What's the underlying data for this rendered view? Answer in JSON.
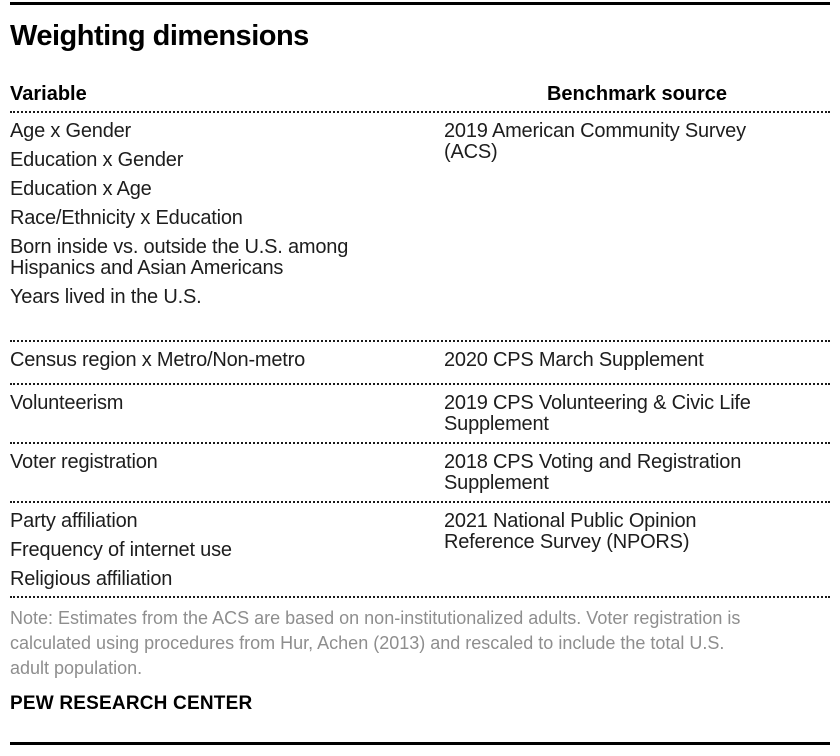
{
  "colors": {
    "rule": "#000000",
    "body_text": "#1d1d1d",
    "note_gray": "#8e8e8e"
  },
  "chart_data": {
    "type": "table",
    "title": "Weighting dimensions",
    "columns": [
      "Variable",
      "Benchmark source"
    ],
    "rows": [
      {
        "variables": [
          "Age x Gender",
          "Education x Gender",
          "Education x Age",
          "Race/Ethnicity x Education",
          "Born inside vs. outside the U.S. among Hispanics and Asian Americans",
          "Years lived in the U.S."
        ],
        "benchmark": "2019 American Community Survey (ACS)",
        "benchmark_lines": [
          "2019 American Community Survey",
          "(ACS)"
        ]
      },
      {
        "variables": [
          "Census region x Metro/Non-metro"
        ],
        "benchmark": "2020 CPS March Supplement",
        "benchmark_lines": [
          "2020 CPS March Supplement"
        ]
      },
      {
        "variables": [
          "Volunteerism"
        ],
        "benchmark": "2019 CPS Volunteering & Civic Life Supplement",
        "benchmark_lines": [
          "2019 CPS Volunteering & Civic Life",
          "Supplement"
        ]
      },
      {
        "variables": [
          "Voter registration"
        ],
        "benchmark": "2018 CPS Voting and Registration Supplement",
        "benchmark_lines": [
          "2018 CPS Voting and Registration",
          "Supplement"
        ]
      },
      {
        "variables": [
          "Party affiliation",
          "Frequency of internet use",
          "Religious affiliation"
        ],
        "benchmark": "2021 National Public Opinion Reference Survey (NPORS)",
        "benchmark_lines": [
          "2021 National Public Opinion",
          "Reference Survey (NPORS)"
        ]
      }
    ],
    "note": "Note: Estimates from the ACS are based on non-institutionalized adults. Voter registration is calculated using procedures from Hur, Achen (2013) and rescaled to include the total U.S. adult population.",
    "note_lines": [
      "Note: Estimates from the ACS are based on non-institutionalized adults. Voter registration is",
      "calculated using procedures from Hur, Achen (2013) and rescaled to include the total U.S.",
      "adult population."
    ],
    "source": "PEW RESEARCH CENTER"
  }
}
